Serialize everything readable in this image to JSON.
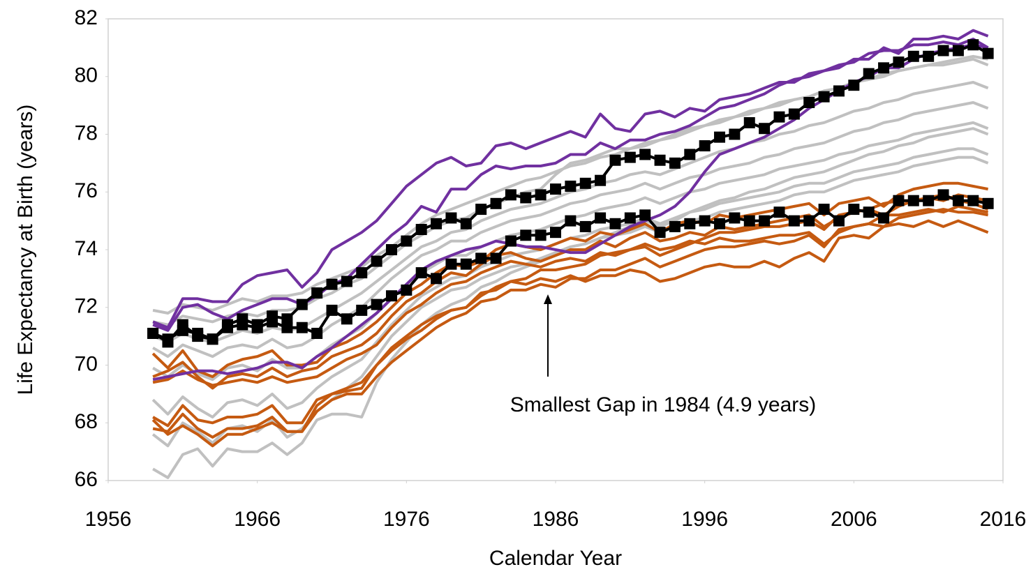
{
  "chart_data": {
    "type": "line",
    "x_label": "Calendar Year",
    "y_label": "Life Expectancy at Birth (years)",
    "annotation": "Smallest Gap in 1984 (4.9 years)",
    "xlim": [
      1956,
      2016
    ],
    "xticks": [
      1956,
      1966,
      1976,
      1986,
      1996,
      2006,
      2016
    ],
    "ylim": [
      66,
      82
    ],
    "yticks": [
      66,
      68,
      70,
      72,
      74,
      76,
      78,
      80,
      82
    ],
    "x": [
      1959,
      1960,
      1961,
      1962,
      1963,
      1964,
      1965,
      1966,
      1967,
      1968,
      1969,
      1970,
      1971,
      1972,
      1973,
      1974,
      1975,
      1976,
      1977,
      1978,
      1979,
      1980,
      1981,
      1982,
      1983,
      1984,
      1985,
      1986,
      1987,
      1988,
      1989,
      1990,
      1991,
      1992,
      1993,
      1994,
      1995,
      1996,
      1997,
      1998,
      1999,
      2000,
      2001,
      2002,
      2003,
      2004,
      2005,
      2006,
      2007,
      2008,
      2009,
      2010,
      2011,
      2012,
      2013,
      2014,
      2015
    ],
    "series": [
      {
        "color": "#c0c0c0",
        "values": [
          71.9,
          71.8,
          72.1,
          72.0,
          71.9,
          72.1,
          72.3,
          72.2,
          72.4,
          72.4,
          72.5,
          72.8,
          73.0,
          73.2,
          73.4,
          73.8,
          74.1,
          74.5,
          74.9,
          75.2,
          75.4,
          75.6,
          75.8,
          76.0,
          76.2,
          76.4,
          76.5,
          76.7,
          76.9,
          77.0,
          77.2,
          77.3,
          77.5,
          77.6,
          77.8,
          77.9,
          78.1,
          78.3,
          78.4,
          78.6,
          78.7,
          78.9,
          79.0,
          79.2,
          79.3,
          79.5,
          79.6,
          79.8,
          79.9,
          80.1,
          80.2,
          80.3,
          80.4,
          80.5,
          80.6,
          80.7,
          80.6
        ]
      },
      {
        "color": "#c0c0c0",
        "values": [
          71.0,
          70.8,
          71.1,
          70.9,
          70.8,
          71.0,
          71.2,
          71.1,
          71.3,
          71.2,
          71.3,
          71.6,
          71.9,
          72.2,
          72.5,
          72.9,
          73.3,
          73.7,
          74.1,
          74.3,
          74.6,
          74.7,
          75.0,
          75.2,
          75.4,
          75.5,
          75.6,
          75.8,
          76.0,
          76.1,
          76.3,
          76.4,
          76.6,
          76.7,
          76.6,
          76.8,
          77.0,
          77.2,
          77.4,
          77.5,
          77.7,
          77.8,
          78.0,
          78.1,
          78.3,
          78.4,
          78.6,
          78.8,
          78.9,
          79.1,
          79.2,
          79.4,
          79.5,
          79.6,
          79.7,
          79.8,
          79.6
        ]
      },
      {
        "color": "#c0c0c0",
        "values": [
          70.6,
          70.3,
          70.7,
          70.5,
          70.3,
          70.6,
          70.7,
          70.6,
          70.9,
          70.6,
          70.7,
          71.0,
          71.4,
          71.7,
          72.0,
          72.5,
          73.0,
          73.4,
          73.8,
          74.0,
          74.3,
          74.3,
          74.6,
          74.8,
          75.0,
          75.1,
          75.2,
          75.4,
          75.6,
          75.7,
          75.9,
          76.0,
          76.1,
          76.3,
          76.1,
          76.3,
          76.5,
          76.6,
          76.8,
          76.9,
          77.0,
          77.2,
          77.3,
          77.5,
          77.6,
          77.7,
          77.9,
          78.1,
          78.2,
          78.4,
          78.5,
          78.7,
          78.8,
          78.9,
          79.0,
          79.1,
          78.9
        ]
      },
      {
        "color": "#c0c0c0",
        "values": [
          69.9,
          69.6,
          70.0,
          69.7,
          69.5,
          69.9,
          70.0,
          69.8,
          70.2,
          69.9,
          69.9,
          70.3,
          70.7,
          71.0,
          71.3,
          71.8,
          72.3,
          72.8,
          73.2,
          73.5,
          73.8,
          73.8,
          74.1,
          74.3,
          74.5,
          74.6,
          74.7,
          74.9,
          75.1,
          75.2,
          75.4,
          75.5,
          75.6,
          75.8,
          75.6,
          75.8,
          76.0,
          76.1,
          76.3,
          76.4,
          76.5,
          76.6,
          76.8,
          76.9,
          77.0,
          77.1,
          77.3,
          77.4,
          77.6,
          77.7,
          77.8,
          78.0,
          78.1,
          78.2,
          78.3,
          78.4,
          78.2
        ]
      },
      {
        "color": "#c0c0c0",
        "values": [
          68.8,
          68.3,
          68.9,
          68.5,
          68.2,
          68.7,
          68.8,
          68.6,
          69.0,
          68.5,
          68.7,
          69.2,
          69.6,
          69.9,
          70.2,
          70.8,
          71.4,
          71.9,
          72.4,
          72.7,
          73.0,
          73.1,
          73.4,
          73.6,
          73.8,
          73.9,
          74.0,
          74.2,
          74.4,
          74.5,
          74.7,
          74.8,
          74.9,
          75.1,
          74.9,
          75.1,
          75.3,
          75.4,
          75.6,
          75.7,
          75.8,
          75.9,
          76.0,
          76.2,
          76.3,
          76.3,
          76.5,
          76.7,
          76.8,
          76.9,
          77.0,
          77.2,
          77.3,
          77.4,
          77.5,
          77.5,
          77.3
        ]
      },
      {
        "color": "#c0c0c0",
        "values": [
          67.6,
          67.2,
          68.0,
          67.7,
          67.3,
          67.8,
          67.9,
          67.7,
          68.1,
          67.5,
          67.8,
          68.4,
          68.8,
          69.2,
          69.6,
          70.3,
          71.0,
          71.5,
          72.0,
          72.3,
          72.6,
          72.7,
          73.0,
          73.2,
          73.4,
          73.5,
          73.7,
          73.9,
          74.1,
          74.2,
          74.4,
          74.5,
          74.6,
          74.8,
          74.6,
          74.8,
          75.0,
          75.1,
          75.3,
          75.4,
          75.5,
          75.6,
          75.7,
          75.9,
          76.0,
          76.0,
          76.2,
          76.4,
          76.5,
          76.6,
          76.7,
          76.9,
          77.0,
          77.1,
          77.2,
          77.2,
          77.0
        ]
      },
      {
        "color": "#c0c0c0",
        "values": [
          66.4,
          66.1,
          66.9,
          67.1,
          66.5,
          67.1,
          67.0,
          67.0,
          67.3,
          66.9,
          67.3,
          68.1,
          68.3,
          68.3,
          68.2,
          69.4,
          70.2,
          70.8,
          71.4,
          71.8,
          72.1,
          72.3,
          72.7,
          72.9,
          73.2,
          73.4,
          73.6,
          73.9,
          74.1,
          74.2,
          74.4,
          74.6,
          74.8,
          75.0,
          74.8,
          75.0,
          75.3,
          75.5,
          75.7,
          75.8,
          76.0,
          76.1,
          76.3,
          76.5,
          76.6,
          76.7,
          76.9,
          77.1,
          77.3,
          77.4,
          77.6,
          77.7,
          77.9,
          78.0,
          78.1,
          78.2,
          78.0
        ]
      },
      {
        "color": "#c0c0c0",
        "values": [
          71.5,
          71.4,
          71.7,
          71.6,
          71.5,
          71.7,
          71.8,
          71.7,
          71.9,
          71.9,
          72.0,
          72.3,
          72.5,
          72.8,
          73.0,
          73.4,
          73.8,
          74.2,
          74.5,
          74.8,
          75.0,
          75.1,
          75.4,
          75.6,
          75.8,
          76.0,
          76.1,
          76.6,
          77.0,
          77.1,
          77.3,
          77.5,
          77.5,
          77.7,
          77.8,
          78.0,
          78.2,
          78.3,
          78.5,
          78.6,
          78.8,
          78.9,
          79.1,
          79.2,
          79.3,
          79.5,
          79.6,
          79.8,
          79.9,
          80.0,
          80.2,
          80.3,
          80.4,
          80.4,
          80.5,
          80.6,
          80.4
        ]
      },
      {
        "color": "#c55a11",
        "values": [
          70.4,
          69.9,
          70.5,
          69.8,
          69.6,
          70.0,
          70.2,
          70.3,
          70.5,
          70.0,
          70.0,
          70.1,
          70.6,
          70.8,
          71.1,
          71.5,
          72.0,
          72.5,
          72.8,
          73.2,
          73.5,
          73.4,
          73.6,
          74.0,
          74.2,
          74.1,
          74.0,
          74.2,
          74.4,
          74.3,
          74.6,
          74.5,
          74.7,
          74.9,
          74.6,
          74.9,
          75.0,
          74.9,
          75.2,
          75.1,
          75.2,
          75.3,
          75.4,
          75.5,
          75.6,
          75.2,
          75.6,
          75.7,
          75.8,
          75.5,
          75.9,
          76.1,
          76.2,
          76.3,
          76.3,
          76.2,
          76.1
        ]
      },
      {
        "color": "#c55a11",
        "values": [
          69.6,
          69.8,
          70.1,
          69.6,
          69.2,
          69.6,
          69.7,
          69.6,
          69.9,
          69.6,
          69.8,
          69.9,
          70.3,
          70.5,
          70.7,
          71.1,
          71.7,
          72.2,
          72.5,
          72.9,
          73.2,
          73.1,
          73.5,
          73.8,
          73.9,
          73.7,
          73.6,
          73.8,
          74.0,
          74.0,
          74.3,
          74.1,
          74.4,
          74.6,
          74.3,
          74.4,
          74.6,
          74.5,
          74.8,
          74.7,
          74.8,
          74.9,
          75.0,
          75.1,
          75.2,
          74.8,
          75.1,
          75.3,
          75.4,
          75.2,
          75.5,
          75.7,
          75.8,
          75.9,
          75.7,
          75.6,
          75.4
        ]
      },
      {
        "color": "#c55a11",
        "values": [
          69.4,
          69.5,
          69.8,
          69.5,
          69.3,
          69.4,
          69.5,
          69.4,
          69.6,
          69.4,
          69.5,
          69.6,
          69.9,
          70.2,
          70.4,
          70.7,
          71.3,
          71.8,
          72.1,
          72.5,
          72.8,
          72.9,
          73.2,
          73.4,
          73.6,
          73.5,
          73.4,
          73.6,
          73.7,
          73.6,
          73.9,
          73.8,
          74.0,
          74.2,
          74.0,
          74.1,
          74.3,
          74.2,
          74.4,
          74.3,
          74.3,
          74.4,
          74.5,
          74.5,
          74.6,
          74.2,
          74.6,
          74.8,
          74.9,
          74.8,
          75.1,
          75.2,
          75.3,
          75.4,
          75.3,
          75.3,
          75.2
        ]
      },
      {
        "color": "#c55a11",
        "values": [
          68.2,
          67.9,
          68.6,
          68.1,
          68.0,
          68.2,
          68.2,
          68.3,
          68.6,
          68.0,
          68.0,
          68.8,
          69.0,
          69.1,
          69.2,
          70.0,
          70.6,
          71.0,
          71.4,
          71.7,
          71.9,
          72.0,
          72.5,
          72.6,
          72.9,
          72.8,
          73.0,
          72.9,
          73.1,
          72.9,
          73.1,
          73.1,
          73.3,
          73.2,
          72.9,
          73.0,
          73.2,
          73.4,
          73.5,
          73.4,
          73.4,
          73.6,
          73.4,
          73.7,
          73.9,
          73.6,
          74.4,
          74.5,
          74.4,
          74.8,
          74.9,
          74.8,
          75.0,
          74.8,
          75.0,
          74.8,
          74.6
        ]
      },
      {
        "color": "#c55a11",
        "values": [
          67.8,
          67.7,
          68.3,
          67.8,
          67.5,
          67.8,
          67.8,
          67.9,
          68.2,
          67.7,
          67.7,
          68.4,
          68.8,
          69.0,
          69.0,
          69.6,
          70.1,
          70.5,
          70.9,
          71.3,
          71.6,
          71.8,
          72.2,
          72.3,
          72.6,
          72.6,
          72.8,
          72.7,
          73.0,
          73.0,
          73.3,
          73.3,
          73.5,
          73.7,
          73.4,
          73.6,
          73.8,
          74.0,
          74.1,
          74.1,
          74.2,
          74.3,
          74.2,
          74.3,
          74.5,
          74.1,
          74.7,
          74.8,
          74.9,
          75.2,
          75.2,
          75.3,
          75.4,
          75.3,
          75.5,
          75.4,
          75.3
        ]
      },
      {
        "color": "#c55a11",
        "values": [
          68.1,
          67.6,
          67.9,
          67.6,
          67.2,
          67.6,
          67.6,
          67.8,
          68.0,
          67.7,
          67.7,
          68.6,
          69.0,
          69.2,
          69.4,
          70.0,
          70.5,
          70.9,
          71.2,
          71.6,
          71.9,
          72.0,
          72.4,
          72.7,
          72.9,
          73.0,
          73.3,
          73.3,
          73.4,
          73.5,
          73.8,
          73.9,
          74.0,
          74.1,
          73.8,
          74.0,
          74.2,
          74.4,
          74.6,
          74.6,
          74.7,
          74.8,
          74.8,
          74.9,
          75.0,
          74.7,
          75.2,
          75.3,
          75.4,
          75.6,
          75.7,
          75.7,
          75.8,
          75.7,
          75.9,
          75.8,
          75.7
        ]
      },
      {
        "color": "#7030a0",
        "values": [
          71.5,
          71.3,
          72.3,
          72.3,
          72.2,
          72.2,
          72.8,
          73.1,
          73.2,
          73.3,
          72.7,
          73.2,
          74.0,
          74.3,
          74.6,
          75.0,
          75.6,
          76.2,
          76.6,
          77.0,
          77.2,
          76.9,
          77.0,
          77.6,
          77.7,
          77.5,
          77.7,
          77.9,
          78.1,
          77.9,
          78.7,
          78.2,
          78.1,
          78.7,
          78.8,
          78.6,
          78.9,
          78.8,
          79.2,
          79.3,
          79.4,
          79.6,
          79.8,
          79.8,
          80.1,
          80.2,
          80.3,
          80.6,
          80.6,
          81.0,
          80.8,
          81.3,
          81.3,
          81.4,
          81.3,
          81.6,
          81.4
        ]
      },
      {
        "color": "#7030a0",
        "values": [
          71.4,
          71.2,
          72.0,
          72.1,
          71.8,
          71.6,
          71.9,
          72.1,
          72.3,
          72.3,
          72.1,
          72.4,
          72.8,
          73.0,
          73.5,
          74.0,
          74.5,
          74.9,
          75.5,
          75.3,
          76.1,
          76.1,
          76.6,
          76.9,
          76.8,
          76.9,
          76.9,
          77.0,
          77.3,
          77.3,
          77.7,
          77.5,
          77.8,
          77.8,
          78.0,
          78.1,
          78.3,
          78.6,
          78.9,
          79.0,
          79.2,
          79.4,
          79.7,
          79.9,
          80.0,
          80.2,
          80.4,
          80.5,
          80.8,
          80.9,
          80.9,
          81.1,
          81.1,
          81.2,
          81.1,
          81.3,
          81.0
        ]
      },
      {
        "color": "#7030a0",
        "values": [
          69.5,
          69.6,
          69.7,
          69.8,
          69.8,
          69.7,
          69.8,
          69.9,
          70.1,
          70.1,
          69.9,
          70.3,
          70.6,
          71.0,
          71.4,
          71.8,
          72.3,
          72.8,
          73.3,
          73.6,
          73.8,
          74.0,
          74.1,
          74.3,
          74.2,
          74.1,
          74.1,
          74.0,
          73.9,
          73.9,
          74.2,
          74.5,
          74.8,
          75.0,
          75.2,
          75.5,
          76.0,
          76.7,
          77.3,
          77.5,
          77.7,
          77.9,
          78.2,
          78.5,
          78.9,
          79.2,
          79.5,
          79.8,
          80.0,
          80.3,
          80.3,
          80.6,
          80.8,
          80.9,
          81.0,
          81.1,
          81.0
        ]
      },
      {
        "color": "#000000",
        "markers": true,
        "values": [
          71.1,
          70.8,
          71.4,
          71.0,
          70.9,
          71.4,
          71.6,
          71.4,
          71.7,
          71.6,
          72.1,
          72.5,
          72.8,
          72.9,
          73.2,
          73.6,
          74.0,
          74.3,
          74.7,
          74.9,
          75.1,
          74.9,
          75.4,
          75.6,
          75.9,
          75.8,
          75.9,
          76.1,
          76.2,
          76.3,
          76.4,
          77.1,
          77.2,
          77.3,
          77.1,
          77.0,
          77.3,
          77.6,
          77.9,
          78.0,
          78.4,
          78.2,
          78.6,
          78.7,
          79.1,
          79.3,
          79.5,
          79.7,
          80.1,
          80.3,
          80.5,
          80.7,
          80.7,
          80.9,
          80.9,
          81.1,
          80.8
        ]
      },
      {
        "color": "#000000",
        "markers": true,
        "values": [
          71.1,
          70.9,
          71.2,
          71.1,
          70.9,
          71.3,
          71.4,
          71.3,
          71.5,
          71.3,
          71.3,
          71.1,
          71.9,
          71.6,
          71.9,
          72.1,
          72.4,
          72.6,
          73.2,
          73.0,
          73.5,
          73.5,
          73.7,
          73.7,
          74.3,
          74.5,
          74.5,
          74.6,
          75.0,
          74.8,
          75.1,
          74.9,
          75.1,
          75.2,
          74.6,
          74.8,
          74.9,
          75.0,
          74.9,
          75.1,
          75.0,
          75.0,
          75.3,
          75.0,
          75.0,
          75.4,
          75.0,
          75.4,
          75.3,
          75.1,
          75.7,
          75.7,
          75.7,
          75.9,
          75.7,
          75.7,
          75.6
        ]
      }
    ]
  }
}
